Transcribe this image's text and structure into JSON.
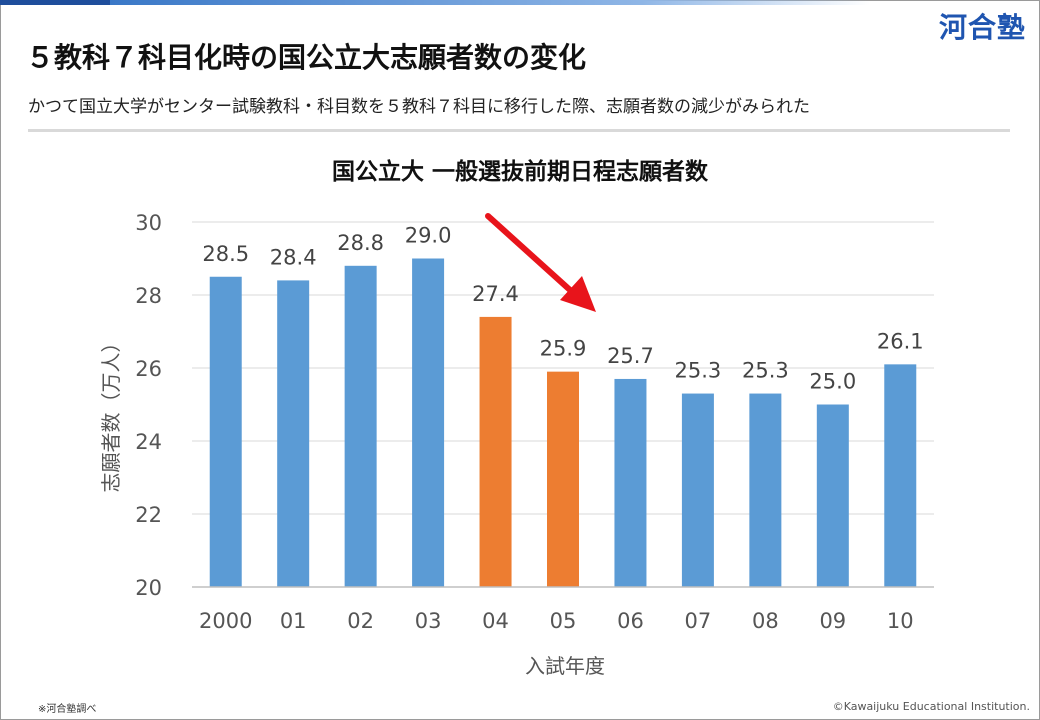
{
  "header": {
    "logo": "河合塾",
    "title": "５教科７科目化時の国公立大志願者数の変化",
    "subtitle": "かつて国立大学がセンター試験教科・科目数を５教科７科目に移行した際、志願者数の減少がみられた"
  },
  "colors": {
    "normal_bar": "#5b9bd5",
    "highlight_bar": "#ed7d31",
    "arrow": "#e8141b"
  },
  "chart_data": {
    "type": "bar",
    "title": "国公立大 一般選抜前期日程志願者数",
    "xlabel": "入試年度",
    "ylabel": "志願者数（万人）",
    "categories": [
      "2000",
      "01",
      "02",
      "03",
      "04",
      "05",
      "06",
      "07",
      "08",
      "09",
      "10"
    ],
    "values": [
      28.5,
      28.4,
      28.8,
      29.0,
      27.4,
      25.9,
      25.7,
      25.3,
      25.3,
      25.0,
      26.1
    ],
    "highlighted": [
      "04",
      "05"
    ],
    "ylim": [
      20,
      30
    ],
    "yticks": [
      20,
      22,
      24,
      26,
      28,
      30
    ],
    "grid": true,
    "annotation": "red arrow pointing down from 04 toward 06"
  },
  "footer": {
    "note": "※河合塾調べ",
    "copyright": "©Kawaijuku Educational Institution."
  }
}
